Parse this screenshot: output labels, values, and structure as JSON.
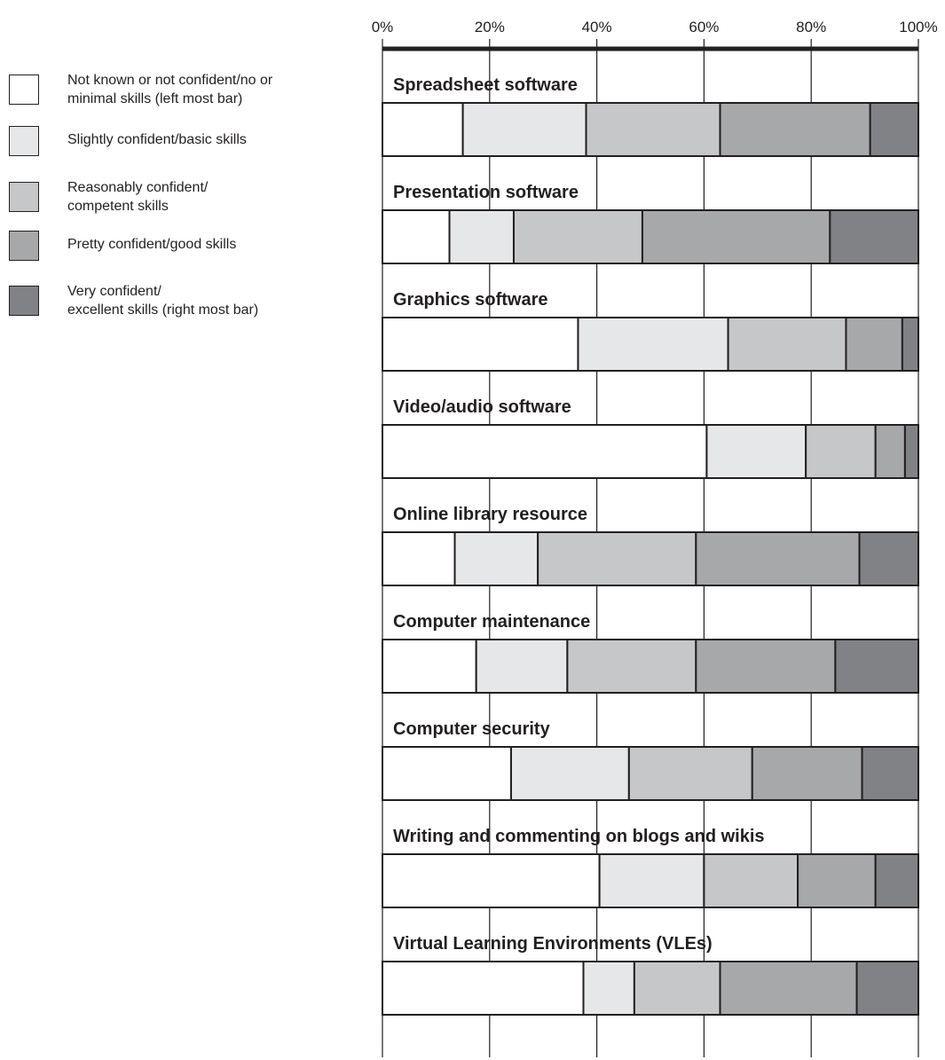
{
  "chart_data": {
    "type": "bar",
    "stacked": true,
    "orientation": "horizontal",
    "x_axis": {
      "ticks": [
        "0%",
        "20%",
        "40%",
        "60%",
        "80%",
        "100%"
      ],
      "range": [
        0,
        100
      ],
      "position": "top",
      "grid": true
    },
    "categories": [
      "Spreadsheet software",
      "Presentation software",
      "Graphics software",
      "Video/audio software",
      "Online library resource",
      "Computer maintenance",
      "Computer security",
      "Writing and commenting on blogs and wikis",
      "Virtual Learning Environments (VLEs)"
    ],
    "series": [
      {
        "name": "Not known or not confident/no or\nminimal skills  (left most bar)",
        "color": "#ffffff",
        "values": [
          15,
          12.5,
          36.5,
          60.5,
          13.5,
          17.5,
          24,
          40.5,
          37.5
        ]
      },
      {
        "name": "Slightly confident/basic skills",
        "color": "#e6e7e8",
        "values": [
          23,
          12,
          28,
          18.5,
          15.5,
          17,
          22,
          19.5,
          9.5
        ]
      },
      {
        "name": "Reasonably confident/\ncompetent skills",
        "color": "#c6c7c9",
        "values": [
          25,
          24,
          22,
          13,
          29.5,
          24,
          23,
          17.5,
          16
        ]
      },
      {
        "name": "Pretty confident/good skills",
        "color": "#a7a8aa",
        "values": [
          28,
          35,
          10.5,
          5.5,
          30.5,
          26,
          20.5,
          14.5,
          25.5
        ]
      },
      {
        "name": "Very confident/\nexcellent skills (right most bar)",
        "color": "#818285",
        "values": [
          9,
          16.5,
          3,
          2.5,
          11,
          15.5,
          10.5,
          8,
          11.5
        ]
      }
    ],
    "legend_position": "left"
  }
}
